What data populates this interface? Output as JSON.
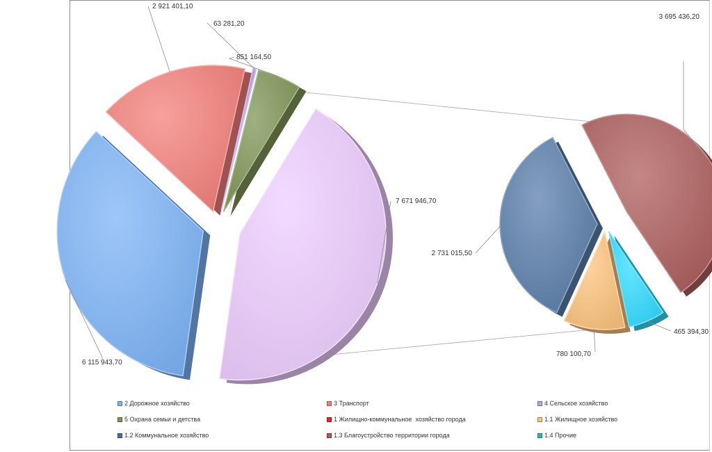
{
  "chart_data": {
    "type": "pie",
    "variant": "bar-of-pie (secondary pie), exploded 3D slices",
    "primary": {
      "slices": [
        {
          "name": "2 Дорожное хозяйство",
          "value": 6115943.7,
          "label": "6 115 943,70",
          "color": "#7eb4f7"
        },
        {
          "name": "3 Транспорт",
          "value": 2921401.1,
          "label": "2 921 401,10",
          "color": "#f4807b"
        },
        {
          "name": "4 Сельское хозяйство",
          "value": 63281.2,
          "label": "63 281,20",
          "color": "#bca2e6"
        },
        {
          "name": "5 Охрана семьи и детства",
          "value": 851164.5,
          "label": "851 164,50",
          "color": "#7f9657"
        },
        {
          "name": "1 Жилищно-коммунальное  хозяйство города",
          "value": 7671946.7,
          "label": "7 671 946,70",
          "color": "#eecdff"
        }
      ]
    },
    "secondary": {
      "slices": [
        {
          "name": "1.1 Жилищное хозяйство",
          "value": 780100.7,
          "label": "780 100,70",
          "color": "#fdc47e"
        },
        {
          "name": "1.2 Коммунальное хозяйство",
          "value": 2731015.5,
          "label": "2 731 015,50",
          "color": "#5b7fab"
        },
        {
          "name": "1.3 Благоустройство территории города",
          "value": 3695436.2,
          "label": "3 695 436,20",
          "color": "#ad5f5e"
        },
        {
          "name": "1.4 Прочие",
          "value": 465394.3,
          "label": "465 394,30",
          "color": "#33dcff"
        }
      ]
    },
    "legend": {
      "position": "bottom",
      "items": [
        {
          "label": "2 Дорожное хозяйство",
          "color": "#7eb4f7"
        },
        {
          "label": "3 Транспорт",
          "color": "#f4807b"
        },
        {
          "label": "4 Сельское хозяйство",
          "color": "#bca2e6"
        },
        {
          "label": "5 Охрана семьи и детства",
          "color": "#7f9657"
        },
        {
          "label": "1 Жилищно-коммунальное  хозяйство города",
          "color": "#ee2222"
        },
        {
          "label": "1.1 Жилищное хозяйство",
          "color": "#fdc47e"
        },
        {
          "label": "1.2 Коммунальное хозяйство",
          "color": "#4a6fa0"
        },
        {
          "label": "1.3 Благоустройство территории города",
          "color": "#b35a58"
        },
        {
          "label": "1.4 Прочие",
          "color": "#33b8b0"
        }
      ]
    }
  }
}
